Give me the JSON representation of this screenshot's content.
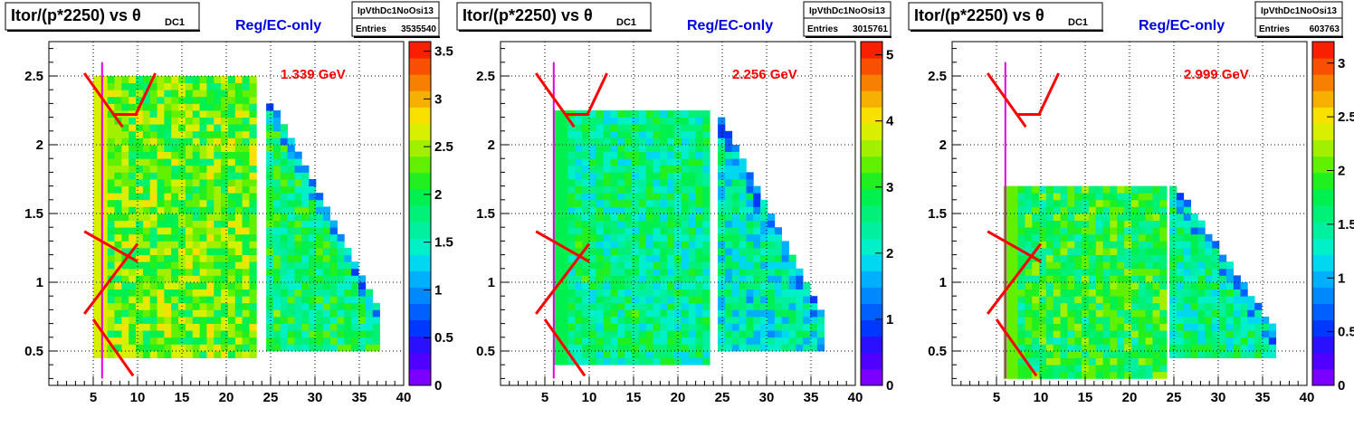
{
  "chart_data": [
    {
      "type": "heatmap",
      "title_main": "Itor/(p*2250) vs θ",
      "title_sub": "DC1",
      "region_label": "Reg/EC-only",
      "stats_name": "IpVthDc1NoOsi13",
      "stats_entries_label": "Entries",
      "stats_entries_value": "3535540",
      "energy_label": "1.339 GeV",
      "xlim": [
        0,
        40
      ],
      "ylim": [
        0.25,
        2.75
      ],
      "x_ticks": [
        "5",
        "10",
        "15",
        "20",
        "25",
        "30",
        "35",
        "40"
      ],
      "y_ticks": [
        "0.5",
        "1",
        "1.5",
        "2",
        "2.5"
      ],
      "zlim": [
        0,
        3.6
      ],
      "z_ticks": [
        "0",
        "0.5",
        "1",
        "1.5",
        "2",
        "2.5",
        "3",
        "3.5"
      ],
      "grid": true,
      "vline_x": 6,
      "regions": [
        {
          "x": [
            5,
            23.3
          ],
          "y_bottom": 0.45,
          "y_top": 2.5,
          "level": 2.3
        },
        {
          "x": [
            24.5,
            37
          ],
          "y_bottom": 0.5,
          "y_top": 2.3,
          "level": 1.9
        }
      ]
    },
    {
      "type": "heatmap",
      "title_main": "Itor/(p*2250) vs θ",
      "title_sub": "DC1",
      "region_label": "Reg/EC-only",
      "stats_name": "IpVthDc1NoOsi13",
      "stats_entries_label": "Entries",
      "stats_entries_value": "3015761",
      "energy_label": "2.256 GeV",
      "xlim": [
        0,
        40
      ],
      "ylim": [
        0.25,
        2.75
      ],
      "x_ticks": [
        "5",
        "10",
        "15",
        "20",
        "25",
        "30",
        "35",
        "40"
      ],
      "y_ticks": [
        "0.5",
        "1",
        "1.5",
        "2",
        "2.5"
      ],
      "zlim": [
        0,
        5.2
      ],
      "z_ticks": [
        "0",
        "1",
        "2",
        "3",
        "4",
        "5"
      ],
      "grid": true,
      "vline_x": 6,
      "regions": [
        {
          "x": [
            6,
            23.3
          ],
          "y_bottom": 0.4,
          "y_top": 2.25,
          "level": 2.5
        },
        {
          "x": [
            24.5,
            36
          ],
          "y_bottom": 0.5,
          "y_top": 2.2,
          "level": 2.2
        }
      ]
    },
    {
      "type": "heatmap",
      "title_main": "Itor/(p*2250) vs θ",
      "title_sub": "DC1",
      "region_label": "Reg/EC-only",
      "stats_name": "IpVthDc1NoOsi13",
      "stats_entries_label": "Entries",
      "stats_entries_value": "603763",
      "energy_label": "2.999 GeV",
      "xlim": [
        0,
        40
      ],
      "ylim": [
        0.25,
        2.75
      ],
      "x_ticks": [
        "5",
        "10",
        "15",
        "20",
        "25",
        "30",
        "35",
        "40"
      ],
      "y_ticks": [
        "0.5",
        "1",
        "1.5",
        "2",
        "2.5"
      ],
      "zlim": [
        0,
        3.2
      ],
      "z_ticks": [
        "0",
        "0.5",
        "1",
        "1.5",
        "2",
        "2.5",
        "3"
      ],
      "grid": true,
      "vline_x": 6,
      "regions": [
        {
          "x": [
            5.8,
            23.5
          ],
          "y_bottom": 0.3,
          "y_top": 1.7,
          "level": 1.8
        },
        {
          "x": [
            24.5,
            36
          ],
          "y_bottom": 0.45,
          "y_top": 1.7,
          "level": 1.5
        }
      ]
    }
  ]
}
